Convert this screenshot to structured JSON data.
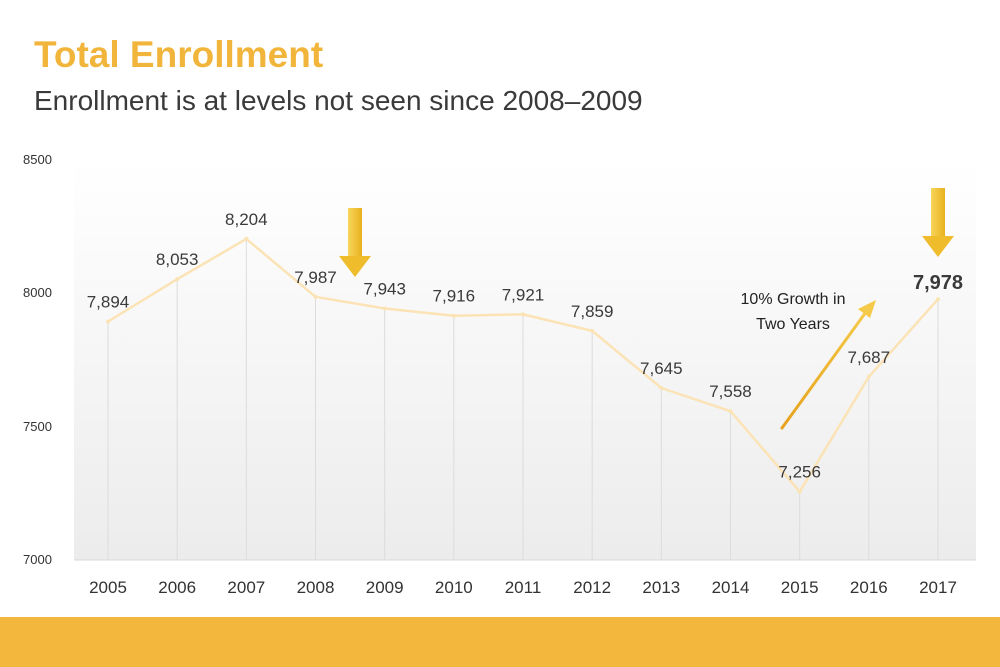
{
  "header": {
    "title": "Total Enrollment",
    "subtitle": "Enrollment is at levels not seen since 2008–2009"
  },
  "colors": {
    "title": "#f2b53c",
    "line": "#fbe3b5",
    "arrow": "#f2c233",
    "bar": "#f3b73e"
  },
  "chart_data": {
    "type": "line",
    "title": "Total Enrollment",
    "subtitle": "Enrollment is at levels not seen since 2008–2009",
    "xlabel": "",
    "ylabel": "",
    "categories": [
      "2005",
      "2006",
      "2007",
      "2008",
      "2009",
      "2010",
      "2011",
      "2012",
      "2013",
      "2014",
      "2015",
      "2016",
      "2017"
    ],
    "series": [
      {
        "values": [
          7894,
          8053,
          8204,
          7987,
          7943,
          7916,
          7921,
          7859,
          7645,
          7558,
          7256,
          7687,
          7978
        ],
        "labels": [
          "7,894",
          "8,053",
          "8,204",
          "7,987",
          "7,943",
          "7,916",
          "7,921",
          "7,859",
          "7,645",
          "7,558",
          "7,256",
          "7,687",
          "7,978"
        ]
      }
    ],
    "ylim": [
      7000,
      8500
    ],
    "yticks": [
      "7000",
      "7500",
      "8000",
      "8500"
    ],
    "highlighted_point": "2017",
    "annotation": {
      "line1": "10% Growth in",
      "line2": "Two Years"
    },
    "down_arrows_at": [
      "2008",
      "2017"
    ],
    "grid": false
  }
}
